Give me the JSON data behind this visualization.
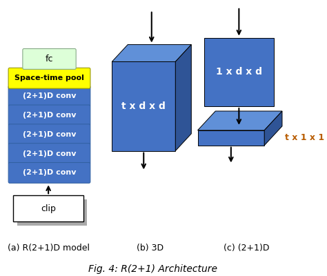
{
  "title": "Fig. 4: R(2+1) Architecture",
  "subtitle_a": "(a) R(2+1)D model",
  "subtitle_b": "(b) 3D",
  "subtitle_c": "(c) (2+1)D",
  "blue_color": "#4472C4",
  "blue_dark": "#2F5496",
  "blue_top": "#6090D8",
  "yellow_color": "#FFFF00",
  "fc_color": "#DDFFD8",
  "stack_labels": [
    "(2+1)D conv",
    "(2+1)D conv",
    "(2+1)D conv",
    "(2+1)D conv",
    "(2+1)D conv"
  ],
  "pool_label": "Space-time pool",
  "fc_label": "fc",
  "clip_label": "clip",
  "cube_label": "t x d x d",
  "slab_label": "1 x d x d",
  "bar_label": "t x 1 x 1",
  "bar_label_color": "#B85C00",
  "fig_width": 474,
  "fig_height": 400
}
